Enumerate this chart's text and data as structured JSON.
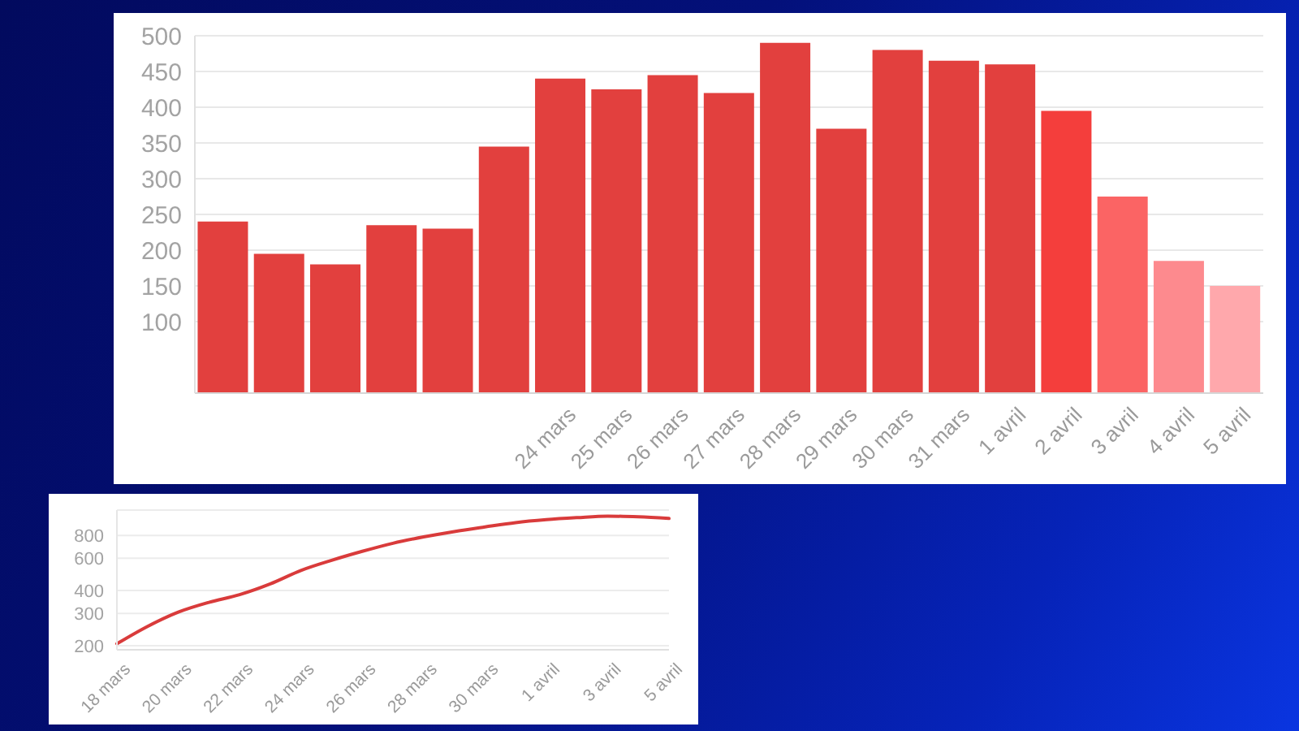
{
  "chart_data": [
    {
      "type": "bar",
      "categories": [
        null,
        null,
        null,
        null,
        null,
        null,
        "24 mars",
        "25 mars",
        "26 mars",
        "27 mars",
        "28 mars",
        "29 mars",
        "30 mars",
        "31 mars",
        "1 avril",
        "2 avril",
        "3 avril",
        "4 avril",
        "5 avril"
      ],
      "values": [
        240,
        195,
        180,
        235,
        230,
        345,
        440,
        425,
        445,
        420,
        490,
        370,
        480,
        465,
        460,
        395,
        275,
        185,
        150
      ],
      "colors": [
        "#e2403e",
        "#e2403e",
        "#e2403e",
        "#e2403e",
        "#e2403e",
        "#e2403e",
        "#e2403e",
        "#e2403e",
        "#e2403e",
        "#e2403e",
        "#e2403e",
        "#e2403e",
        "#e2403e",
        "#e2403e",
        "#e2403e",
        "#f43e3c",
        "#fb6464",
        "#fd8a8e",
        "#ffa8ac"
      ],
      "ylim": [
        0,
        500
      ],
      "yticks": [
        100,
        150,
        200,
        250,
        300,
        350,
        400,
        450,
        500
      ],
      "grid": "y"
    },
    {
      "type": "line",
      "categories": [
        "18 mars",
        null,
        "20 mars",
        null,
        "22 mars",
        null,
        "24 mars",
        null,
        "26 mars",
        null,
        "28 mars",
        null,
        "30 mars",
        null,
        "1 avril",
        null,
        "3 avril",
        null,
        "5 avril"
      ],
      "values": [
        205,
        255,
        305,
        345,
        380,
        435,
        515,
        585,
        655,
        725,
        785,
        840,
        890,
        940,
        975,
        1000,
        1020,
        1010,
        990
      ],
      "color": "#d93b3b",
      "log": "y",
      "ylim": [
        190,
        1100
      ],
      "yticks": [
        200,
        300,
        400,
        600,
        800
      ],
      "grid": "y"
    }
  ]
}
